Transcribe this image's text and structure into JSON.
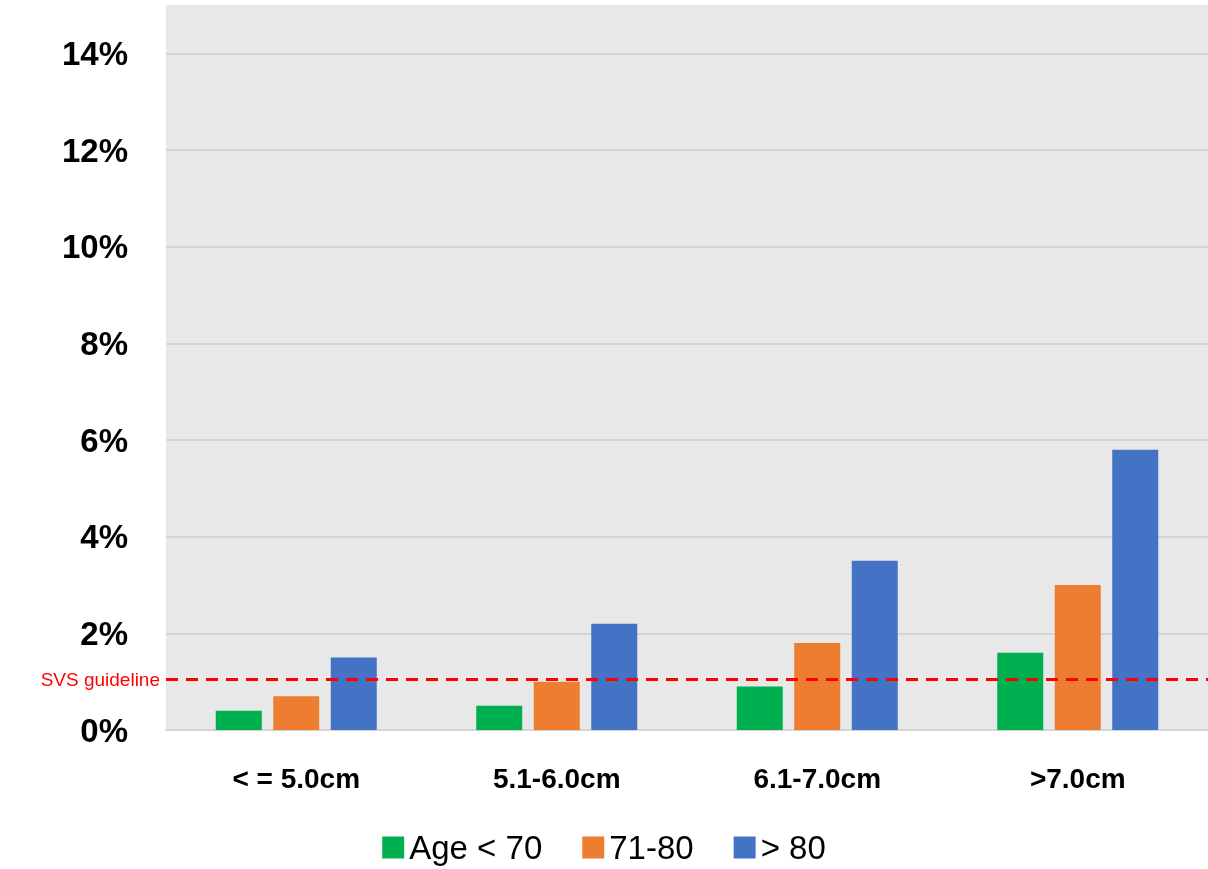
{
  "chart_data": {
    "type": "bar",
    "categories": [
      "< = 5.0cm",
      "5.1-6.0cm",
      "6.1-7.0cm",
      ">7.0cm"
    ],
    "series": [
      {
        "name": "Age < 70",
        "color": "#00b050",
        "values": [
          0.4,
          0.5,
          0.9,
          1.6
        ]
      },
      {
        "name": "71-80",
        "color": "#ed7d31",
        "values": [
          0.7,
          1.0,
          1.8,
          3.0
        ]
      },
      {
        "name": "> 80",
        "color": "#4472c4",
        "values": [
          1.5,
          2.2,
          3.5,
          5.8
        ]
      }
    ],
    "ylim": [
      0,
      15
    ],
    "yticks": [
      {
        "value": 0,
        "label": "0%"
      },
      {
        "value": 2,
        "label": "2%"
      },
      {
        "value": 4,
        "label": "4%"
      },
      {
        "value": 6,
        "label": "6%"
      },
      {
        "value": 8,
        "label": "8%"
      },
      {
        "value": 10,
        "label": "10%"
      },
      {
        "value": 12,
        "label": "12%"
      },
      {
        "value": 14,
        "label": "14%"
      }
    ],
    "ref_lines": [
      {
        "axis": "y",
        "value": 1.05,
        "label": "SVS guideline",
        "color": "#ff0000",
        "line_style": "dashed"
      }
    ],
    "grid": "y",
    "legend": "bottom"
  }
}
